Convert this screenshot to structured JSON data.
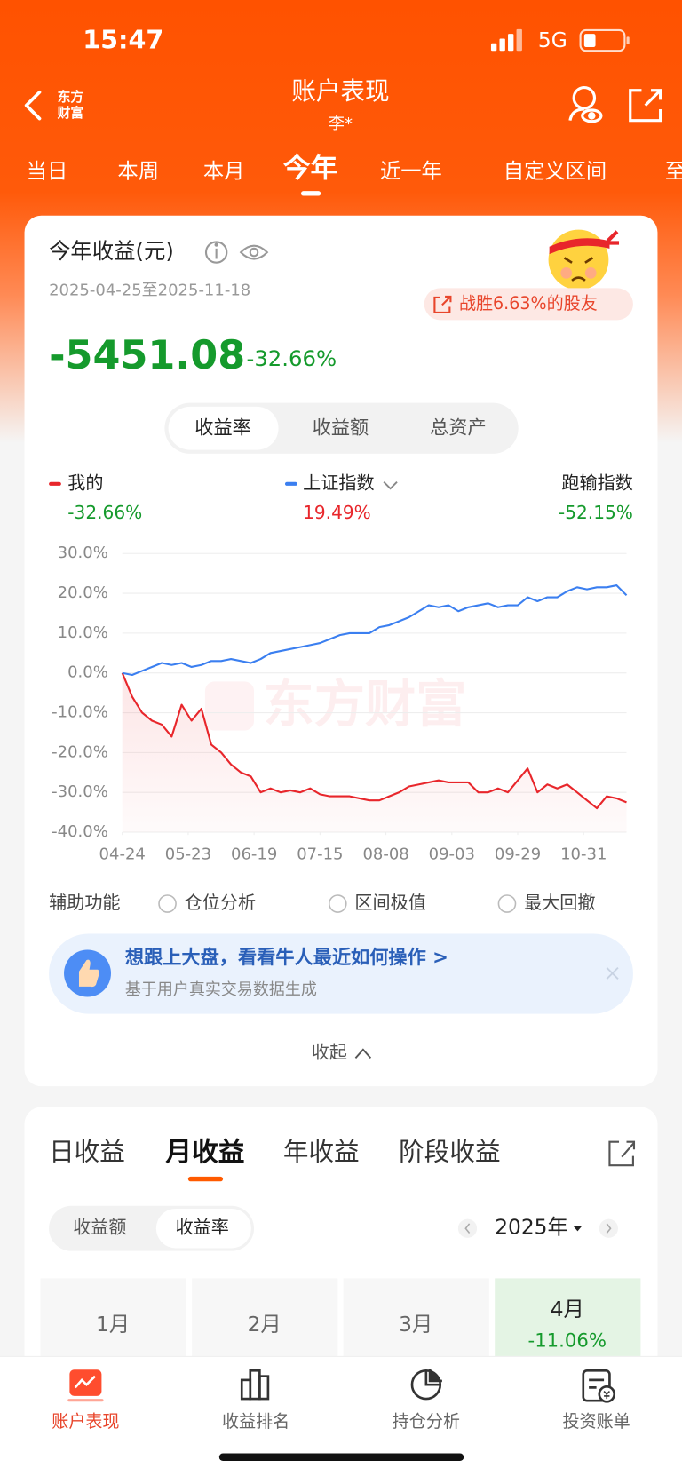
{
  "status_bar": {
    "time": "15:47",
    "network": "5G"
  },
  "header": {
    "logo_lines": [
      "东方",
      "财富"
    ],
    "title": "账户表现",
    "subtitle": "李*"
  },
  "period_tabs": {
    "items": [
      "当日",
      "本周",
      "本月",
      "今年",
      "近一年",
      "自定义区间",
      "至"
    ],
    "active": 3
  },
  "summary_card": {
    "title": "今年收益(元)",
    "date_range": "2025-04-25至2025-11-18",
    "badge": "战胜6.63%的股友",
    "profit": "-5451.08",
    "profit_rate": "-32.66%",
    "toggle": {
      "items": [
        "收益率",
        "收益额",
        "总资产"
      ],
      "active": 0
    }
  },
  "chart_data": {
    "type": "line",
    "watermark": "东方财富",
    "x": [
      0,
      3,
      6,
      9,
      12,
      15,
      18,
      21,
      24,
      27,
      30,
      33,
      36,
      39,
      42,
      45,
      48,
      51,
      54,
      57,
      60,
      63,
      66,
      69,
      72,
      75,
      78,
      81,
      84,
      87,
      90,
      93,
      96,
      99,
      102,
      105,
      108,
      111,
      114,
      117,
      120,
      123,
      126,
      129,
      132,
      135,
      138,
      141,
      144,
      147,
      150,
      153
    ],
    "xlim": [
      0,
      153
    ],
    "xticks": [
      {
        "value": 0,
        "label": "04-24"
      },
      {
        "value": 20,
        "label": "05-23"
      },
      {
        "value": 40,
        "label": "06-19"
      },
      {
        "value": 60,
        "label": "07-15"
      },
      {
        "value": 80,
        "label": "08-08"
      },
      {
        "value": 100,
        "label": "09-03"
      },
      {
        "value": 120,
        "label": "09-29"
      },
      {
        "value": 140,
        "label": "10-31"
      }
    ],
    "ylim": [
      -40,
      30
    ],
    "yticks": [
      {
        "value": 30,
        "label": "30.0%"
      },
      {
        "value": 20,
        "label": "20.0%"
      },
      {
        "value": 10,
        "label": "10.0%"
      },
      {
        "value": 0,
        "label": "0.0%"
      },
      {
        "value": -10,
        "label": "-10.0%"
      },
      {
        "value": -20,
        "label": "-20.0%"
      },
      {
        "value": -30,
        "label": "-30.0%"
      },
      {
        "value": -40,
        "label": "-40.0%"
      }
    ],
    "grid": true,
    "series": [
      {
        "name": "我的",
        "color": "#e8262b",
        "return_label": "-32.66%",
        "values": [
          0,
          -6,
          -10,
          -12,
          -13,
          -16,
          -8,
          -12,
          -9,
          -18,
          -20,
          -23,
          -25,
          -26,
          -30,
          -29,
          -30,
          -29.5,
          -30,
          -29,
          -30.5,
          -31,
          -31,
          -31,
          -31.5,
          -32,
          -32,
          -31,
          -30,
          -28.5,
          -28,
          -27.5,
          -27,
          -27.5,
          -27.5,
          -27.5,
          -30,
          -30,
          -29,
          -30,
          -27,
          -24,
          -30,
          -28,
          -29,
          -28,
          -30,
          -32,
          -34,
          -31,
          -31.5,
          -32.5
        ]
      },
      {
        "name": "上证指数",
        "color": "#3b7ff0",
        "return_label": "19.49%",
        "values": [
          0,
          -0.5,
          0.5,
          1.5,
          2.5,
          2,
          2.5,
          1.5,
          2,
          3,
          3,
          3.5,
          3,
          2.5,
          3.5,
          5,
          5.5,
          6,
          6.5,
          7,
          7.5,
          8.5,
          9.5,
          10,
          10,
          10,
          11.5,
          12,
          13,
          14,
          15.5,
          17,
          16.5,
          17,
          15.5,
          16.5,
          17,
          17.5,
          16.5,
          17,
          17,
          19,
          18,
          19,
          19,
          20.5,
          21.5,
          21,
          21.5,
          21.5,
          22,
          19.5
        ]
      }
    ],
    "comparison": {
      "name": "跑输指数",
      "return_label": "-52.15%"
    }
  },
  "aux": {
    "label": "辅助功能",
    "options": [
      "仓位分析",
      "区间极值",
      "最大回撤"
    ]
  },
  "banner": {
    "title": "想跟上大盘，看看牛人最近如何操作 >",
    "subtitle": "基于用户真实交易数据生成"
  },
  "collapse": "收起",
  "returns": {
    "tabs": [
      "日收益",
      "月收益",
      "年收益",
      "阶段收益"
    ],
    "active": 1,
    "toggle": [
      "收益额",
      "收益率"
    ],
    "toggle_active": 1,
    "year": "2025年",
    "months": [
      {
        "label": "1月"
      },
      {
        "label": "2月"
      },
      {
        "label": "3月"
      },
      {
        "label": "4月",
        "value": "-11.06%"
      }
    ]
  },
  "bottom_nav": {
    "items": [
      "账户表现",
      "收益排名",
      "持仓分析",
      "投资账单"
    ],
    "active": 0
  }
}
